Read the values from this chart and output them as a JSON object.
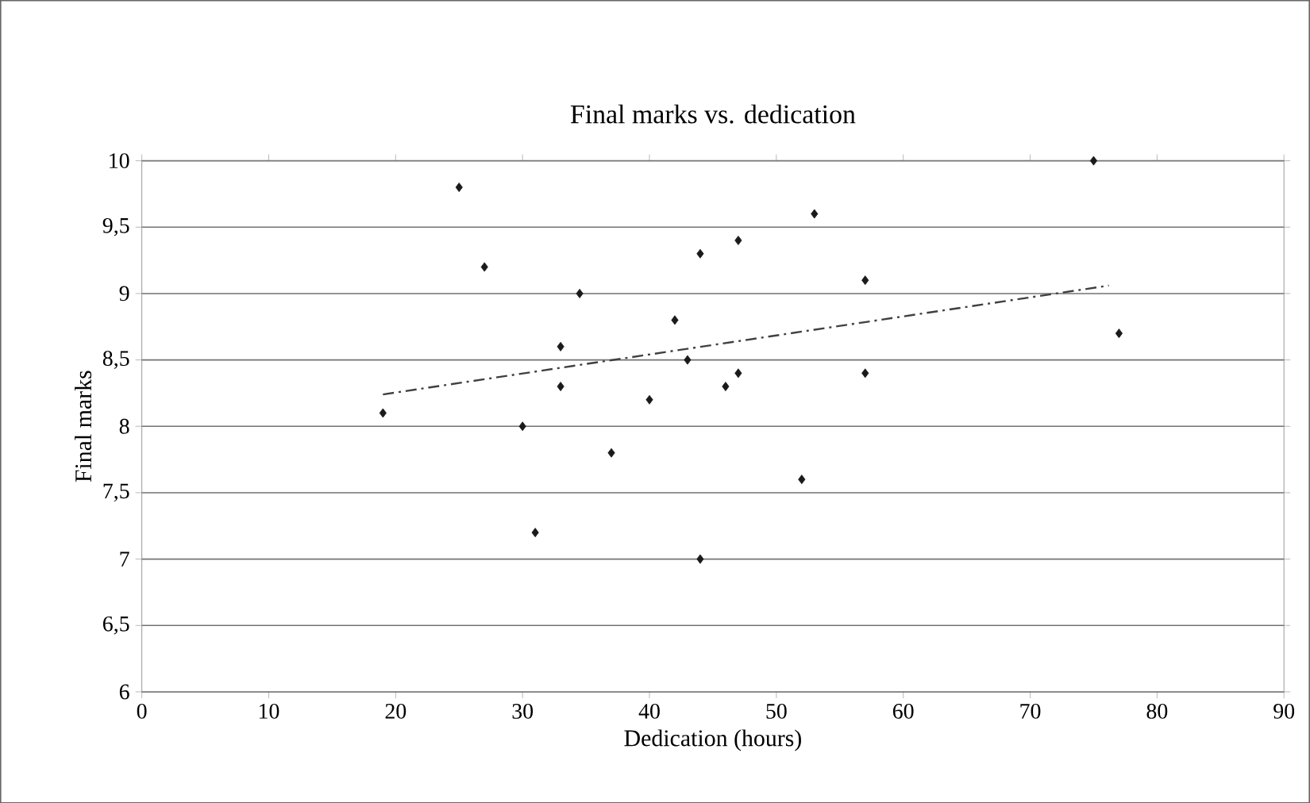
{
  "chart_data": {
    "type": "scatter",
    "title": "Final marks vs. dedication",
    "xlabel": "Dedication (hours)",
    "ylabel": "Final marks",
    "xlim": [
      0,
      90
    ],
    "xticks": [
      0,
      10,
      20,
      30,
      40,
      50,
      60,
      70,
      80,
      90
    ],
    "ylim": [
      6,
      10
    ],
    "yticks": [
      6,
      {
        "value": 6.5,
        "label": "6,5"
      },
      7,
      {
        "value": 7.5,
        "label": "7,5"
      },
      8,
      {
        "value": 8.5,
        "label": "8,5"
      },
      9,
      {
        "value": 9.5,
        "label": "9,5"
      },
      10
    ],
    "grid": "y",
    "series": [
      {
        "color": "#1a1a1a",
        "marker": "diamond",
        "x": [
          19,
          25,
          27,
          31,
          30,
          33,
          33,
          34.5,
          37,
          40,
          42,
          43,
          44,
          44,
          46,
          47,
          47,
          52,
          53,
          57,
          57,
          75,
          77
        ],
        "values": [
          8.1,
          9.8,
          9.2,
          7.2,
          8.0,
          8.6,
          8.3,
          9.0,
          7.8,
          8.2,
          8.8,
          8.5,
          9.3,
          7.0,
          8.3,
          9.4,
          8.4,
          7.6,
          9.6,
          9.1,
          8.4,
          10,
          8.7
        ]
      },
      {
        "type": "line",
        "color": "#404040",
        "line_style": "dashed",
        "x": [
          19,
          76.2
        ],
        "values": [
          8.24,
          9.06
        ]
      }
    ]
  }
}
